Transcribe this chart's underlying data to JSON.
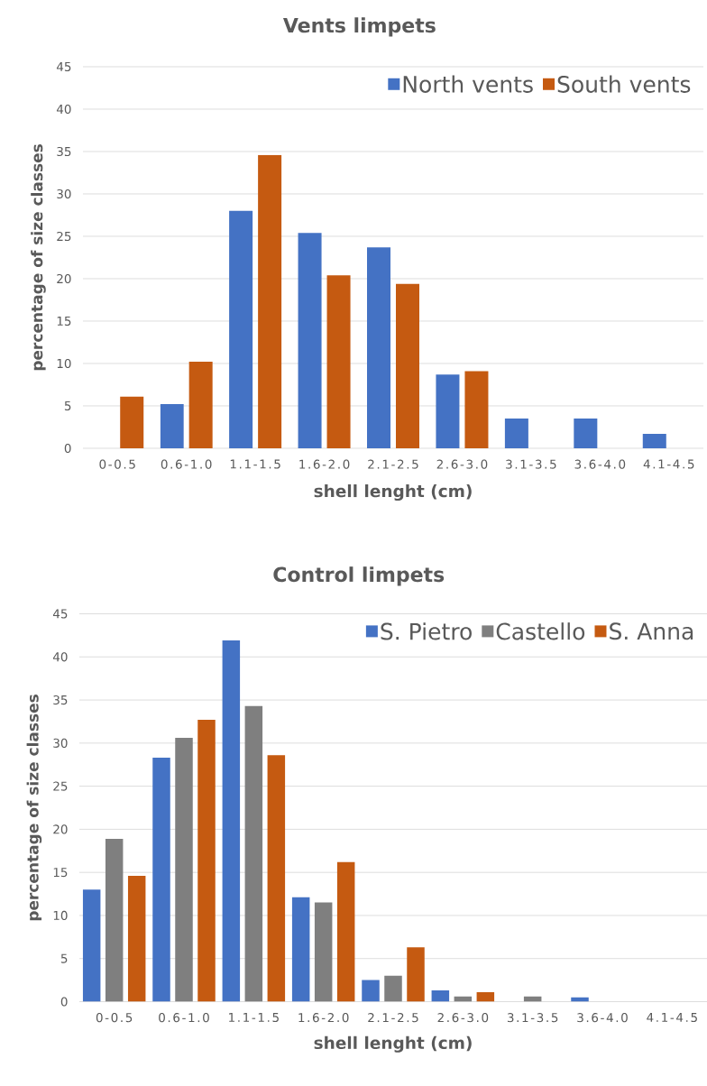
{
  "chart_data": [
    {
      "type": "bar",
      "title": "Vents limpets",
      "xlabel": "shell lenght (cm)",
      "ylabel": "percentage of size classes",
      "categories": [
        "0-0.5",
        "0.6-1.0",
        "1.1-1.5",
        "1.6-2.0",
        "2.1-2.5",
        "2.6-3.0",
        "3.1-3.5",
        "3.6-4.0",
        "4.1-4.5"
      ],
      "series": [
        {
          "name": "North vents",
          "color": "#4472c4",
          "values": [
            null,
            5.2,
            28.0,
            25.4,
            23.7,
            8.7,
            3.5,
            3.5,
            1.7
          ]
        },
        {
          "name": "South vents",
          "color": "#c55a11",
          "values": [
            6.1,
            10.2,
            34.6,
            20.4,
            19.4,
            9.1,
            null,
            null,
            null
          ]
        }
      ],
      "ylim": [
        0,
        45
      ],
      "yticks": [
        0,
        5,
        10,
        15,
        20,
        25,
        30,
        35,
        40,
        45
      ],
      "grid": "y",
      "legend": "top right"
    },
    {
      "type": "bar",
      "title": "Control limpets",
      "xlabel": "shell lenght (cm)",
      "ylabel": "percentage of size classes",
      "categories": [
        "0-0.5",
        "0.6-1.0",
        "1.1-1.5",
        "1.6-2.0",
        "2.1-2.5",
        "2.6-3.0",
        "3.1-3.5",
        "3.6-4.0",
        "4.1-4.5"
      ],
      "series": [
        {
          "name": "S. Pietro",
          "color": "#4472c4",
          "values": [
            13.0,
            28.3,
            41.9,
            12.1,
            2.5,
            1.3,
            null,
            0.5,
            null
          ]
        },
        {
          "name": "Castello",
          "color": "#7f7f7f",
          "values": [
            18.9,
            30.6,
            34.3,
            11.5,
            3.0,
            0.6,
            0.6,
            null,
            null
          ]
        },
        {
          "name": "S. Anna",
          "color": "#c55a11",
          "values": [
            14.6,
            32.7,
            28.6,
            16.2,
            6.3,
            1.1,
            null,
            null,
            null
          ]
        }
      ],
      "ylim": [
        0,
        45
      ],
      "yticks": [
        0,
        5,
        10,
        15,
        20,
        25,
        30,
        35,
        40,
        45
      ],
      "grid": "y",
      "legend": "top right"
    }
  ]
}
